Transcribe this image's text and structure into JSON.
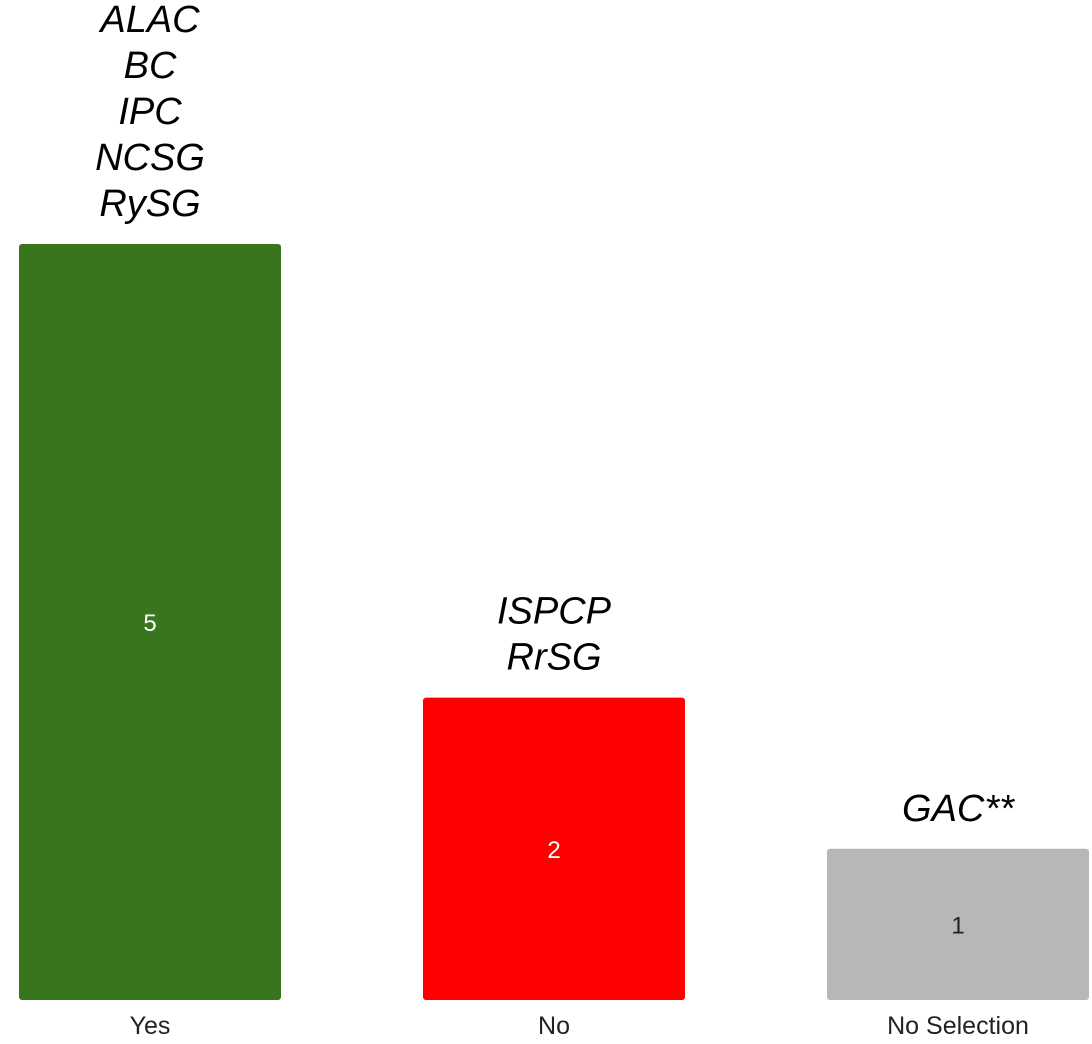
{
  "chart_data": {
    "type": "bar",
    "categories": [
      "Yes",
      "No",
      "No Selection"
    ],
    "values": [
      5,
      2,
      1
    ],
    "ylim": [
      0,
      5
    ],
    "colors": [
      "#38761d",
      "#ff0000",
      "#b7b7b7"
    ],
    "value_label_colors": [
      "#ffffff",
      "#ffffff",
      "#222222"
    ],
    "annotations": [
      [
        "ALAC",
        "BC",
        "IPC",
        "NCSG",
        "RySG"
      ],
      [
        "ISPCP",
        "RrSG"
      ],
      [
        "GAC**"
      ]
    ],
    "grid": false,
    "legend": "none"
  }
}
